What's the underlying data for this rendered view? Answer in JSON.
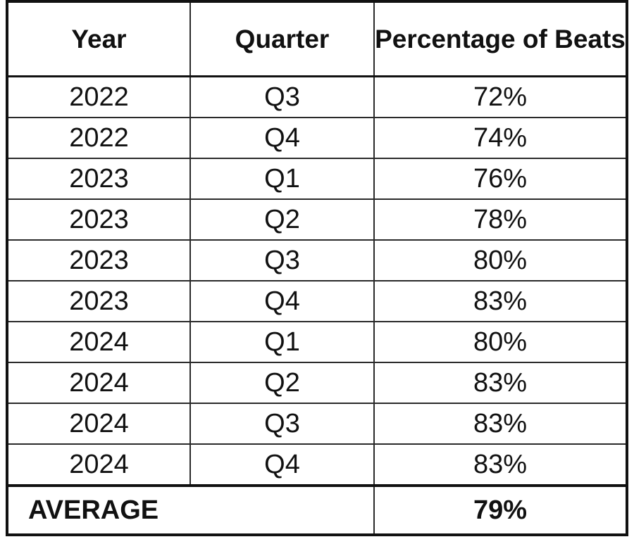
{
  "table": {
    "headers": [
      "Year",
      "Quarter",
      "Percentage of Beats"
    ],
    "rows": [
      {
        "year": "2022",
        "quarter": "Q3",
        "percentage": "72%"
      },
      {
        "year": "2022",
        "quarter": "Q4",
        "percentage": "74%"
      },
      {
        "year": "2023",
        "quarter": "Q1",
        "percentage": "76%"
      },
      {
        "year": "2023",
        "quarter": "Q2",
        "percentage": "78%"
      },
      {
        "year": "2023",
        "quarter": "Q3",
        "percentage": "80%"
      },
      {
        "year": "2023",
        "quarter": "Q4",
        "percentage": "83%"
      },
      {
        "year": "2024",
        "quarter": "Q1",
        "percentage": "80%"
      },
      {
        "year": "2024",
        "quarter": "Q2",
        "percentage": "83%"
      },
      {
        "year": "2024",
        "quarter": "Q3",
        "percentage": "83%"
      },
      {
        "year": "2024",
        "quarter": "Q4",
        "percentage": "83%"
      }
    ],
    "average": {
      "label": "AVERAGE",
      "value": "79%"
    }
  }
}
